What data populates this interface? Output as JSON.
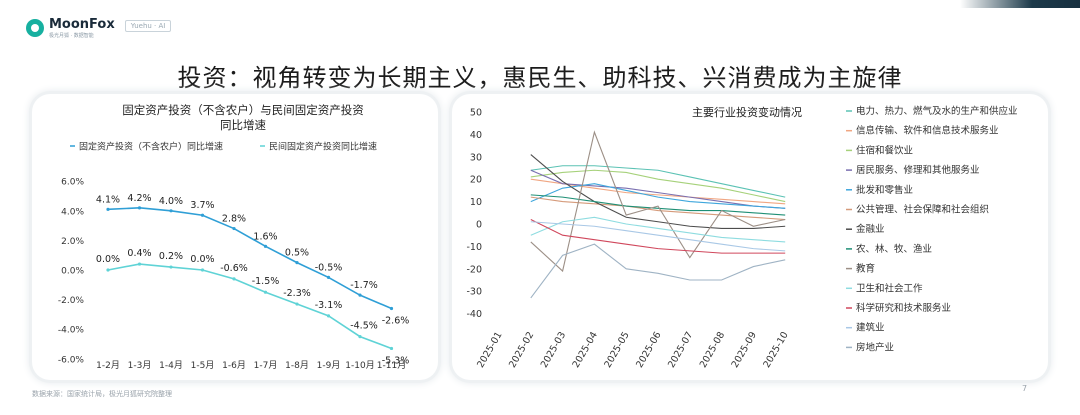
{
  "brand": {
    "name": "MoonFox",
    "sub": "极光月狐 · 数据智能",
    "tag": "Yuehu · AI"
  },
  "headline": "投资：视角转变为长期主义，惠民生、助科技、兴消费成为主旋律",
  "footnote": "数据来源：国家统计局，极光月狐研究院整理",
  "page_number": "7",
  "colors": {
    "brand": "#17b0a0"
  },
  "chart_data": [
    {
      "type": "line",
      "title": [
        "固定资产投资（不含农户）与民间固定资产投资",
        "同比增速"
      ],
      "categories": [
        "1-2月",
        "1-3月",
        "1-4月",
        "1-5月",
        "1-6月",
        "1-7月",
        "1-8月",
        "1-9月",
        "1-10月",
        "1-11月"
      ],
      "y_ticks": [
        "6.0%",
        "4.0%",
        "2.0%",
        "0.0%",
        "-2.0%",
        "-4.0%",
        "-6.0%"
      ],
      "ylim": [
        -6,
        6
      ],
      "legend_position": "top",
      "grid": false,
      "series": [
        {
          "name": "固定资产投资（不含农户）同比增速",
          "color": "#2f9fd6",
          "values": [
            4.1,
            4.2,
            4.0,
            3.7,
            2.8,
            1.6,
            0.5,
            -0.5,
            -1.7,
            -2.6
          ],
          "labels": [
            "4.1%",
            "4.2%",
            "4.0%",
            "3.7%",
            "2.8%",
            "1.6%",
            "0.5%",
            "-0.5%",
            "-1.7%",
            "-2.6%"
          ]
        },
        {
          "name": "民间固定资产投资同比增速",
          "color": "#5fd3d6",
          "values": [
            0.0,
            0.4,
            0.2,
            0.0,
            -0.6,
            -1.5,
            -2.3,
            -3.1,
            -4.5,
            -5.3
          ],
          "labels": [
            "0.0%",
            "0.4%",
            "0.2%",
            "0.0%",
            "-0.6%",
            "-1.5%",
            "-2.3%",
            "-3.1%",
            "-4.5%",
            "-5.3%"
          ]
        }
      ]
    },
    {
      "type": "line",
      "title": "主要行业投资变动情况",
      "categories": [
        "2025-01",
        "2025-02",
        "2025-03",
        "2025-04",
        "2025-05",
        "2025-06",
        "2025-07",
        "2025-08",
        "2025-09",
        "2025-10"
      ],
      "y_ticks": [
        "50",
        "40",
        "30",
        "20",
        "10",
        "0",
        "-10",
        "-20",
        "-30",
        "-40"
      ],
      "ylim": [
        -40,
        50
      ],
      "legend_position": "right",
      "grid": false,
      "series": [
        {
          "name": "电力、热力、燃气及水的生产和供应业",
          "color": "#5bc2b4",
          "values": [
            null,
            24,
            26,
            26,
            25,
            24,
            21,
            18,
            15,
            12
          ]
        },
        {
          "name": "信息传输、软件和信息技术服务业",
          "color": "#f0a682",
          "values": [
            null,
            20,
            18,
            16,
            14,
            13,
            12,
            11,
            10,
            9
          ]
        },
        {
          "name": "住宿和餐饮业",
          "color": "#a6d17a",
          "values": [
            null,
            21,
            23,
            24,
            23,
            20,
            18,
            16,
            13,
            10
          ]
        },
        {
          "name": "居民服务、修理和其他服务业",
          "color": "#7a6fb0",
          "values": [
            null,
            24,
            18,
            17,
            16,
            14,
            12,
            10,
            8,
            7
          ]
        },
        {
          "name": "批发和零售业",
          "color": "#3ea6dc",
          "values": [
            null,
            10,
            16,
            18,
            15,
            12,
            10,
            9,
            8,
            7
          ]
        },
        {
          "name": "公共管理、社会保障和社会组织",
          "color": "#d59a7a",
          "values": [
            null,
            12,
            10,
            9,
            8,
            6,
            5,
            4,
            3,
            2
          ]
        },
        {
          "name": "金融业",
          "color": "#4d4d4d",
          "values": [
            null,
            31,
            19,
            10,
            3,
            1,
            -1,
            -2,
            -2,
            -1
          ]
        },
        {
          "name": "农、林、牧、渔业",
          "color": "#1f8f75",
          "values": [
            null,
            13,
            12,
            10,
            8,
            7,
            6,
            6,
            5,
            4
          ]
        },
        {
          "name": "教育",
          "color": "#9c8f86",
          "values": [
            null,
            -8,
            -21,
            41,
            4,
            8,
            -15,
            6,
            -1,
            2
          ]
        },
        {
          "name": "卫生和社会工作",
          "color": "#8edce0",
          "values": [
            null,
            -5,
            1,
            3,
            0,
            -2,
            -4,
            -6,
            -7,
            -8
          ]
        },
        {
          "name": "科学研究和技术服务业",
          "color": "#d0475c",
          "values": [
            null,
            2,
            -5,
            -7,
            -9,
            -11,
            -12,
            -13,
            -13,
            -13
          ]
        },
        {
          "name": "建筑业",
          "color": "#a9c8e6",
          "values": [
            null,
            1,
            0,
            -1,
            -3,
            -5,
            -7,
            -9,
            -11,
            -12
          ]
        },
        {
          "name": "房地产业",
          "color": "#9fb3c4",
          "values": [
            null,
            -33,
            -14,
            -9,
            -20,
            -22,
            -25,
            -25,
            -19,
            -16
          ]
        }
      ]
    }
  ]
}
